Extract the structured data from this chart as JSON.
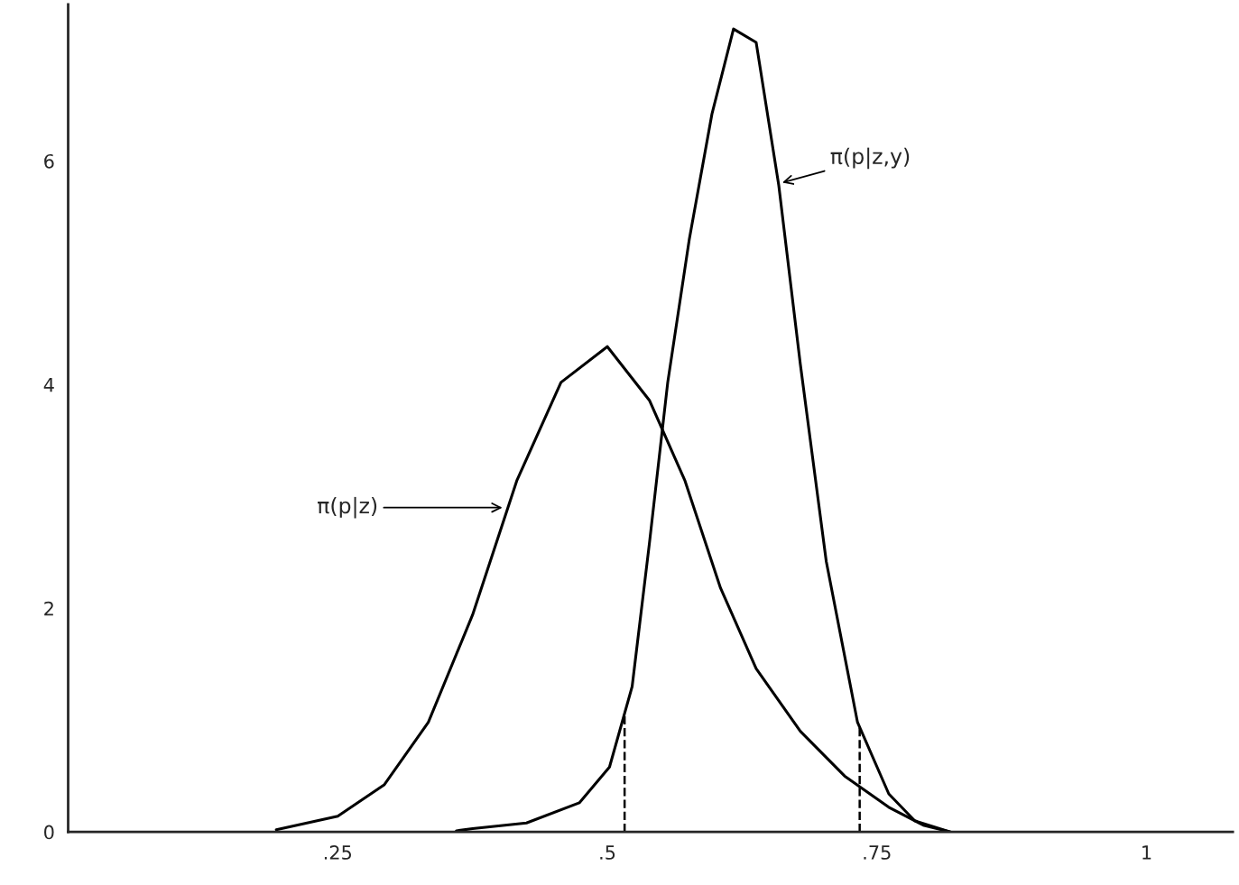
{
  "chart_data": {
    "type": "line",
    "series": [
      {
        "color": "#000000",
        "x": [
          0.193,
          0.25,
          0.293,
          0.334,
          0.375,
          0.416,
          0.457,
          0.5,
          0.539,
          0.572,
          0.605,
          0.638,
          0.679,
          0.72,
          0.761,
          0.793,
          0.818
        ],
        "values": [
          0.02,
          0.14,
          0.42,
          0.98,
          1.94,
          3.14,
          4.02,
          4.34,
          3.86,
          3.14,
          2.18,
          1.46,
          0.9,
          0.5,
          0.22,
          0.06,
          0
        ]
      },
      {
        "color": "#000000",
        "x": [
          0.36,
          0.375,
          0.425,
          0.474,
          0.502,
          0.523,
          0.539,
          0.556,
          0.576,
          0.597,
          0.617,
          0.638,
          0.659,
          0.679,
          0.703,
          0.732,
          0.761,
          0.785,
          0.818
        ],
        "values": [
          0.01,
          0.03,
          0.08,
          0.26,
          0.58,
          1.3,
          2.58,
          4.02,
          5.3,
          6.42,
          7.18,
          7.06,
          5.78,
          4.18,
          2.42,
          0.98,
          0.34,
          0.1,
          0
        ]
      }
    ],
    "xlim": [
      0,
      1.08
    ],
    "ylim": [
      0,
      7.4
    ],
    "xticks": [
      {
        "value": 0.25,
        "label": ".25"
      },
      {
        "value": 0.5,
        "label": ".5"
      },
      {
        "value": 0.75,
        "label": ".75"
      },
      1
    ],
    "yticks": [
      0,
      2,
      4,
      6
    ],
    "ref_lines": [
      {
        "axis": "x",
        "value": 0.516,
        "line_style": "dashed",
        "color": "#000000"
      },
      {
        "axis": "x",
        "value": 0.734,
        "line_style": "dashed",
        "color": "#000000"
      }
    ],
    "annotations": [
      {
        "text": "π(p|z,y)",
        "x": 0.66,
        "y": 5.8
      },
      {
        "text": "π(p|z)",
        "x": 0.405,
        "y": 2.9
      }
    ],
    "grid": false,
    "legend": false,
    "line_style": "solid"
  }
}
